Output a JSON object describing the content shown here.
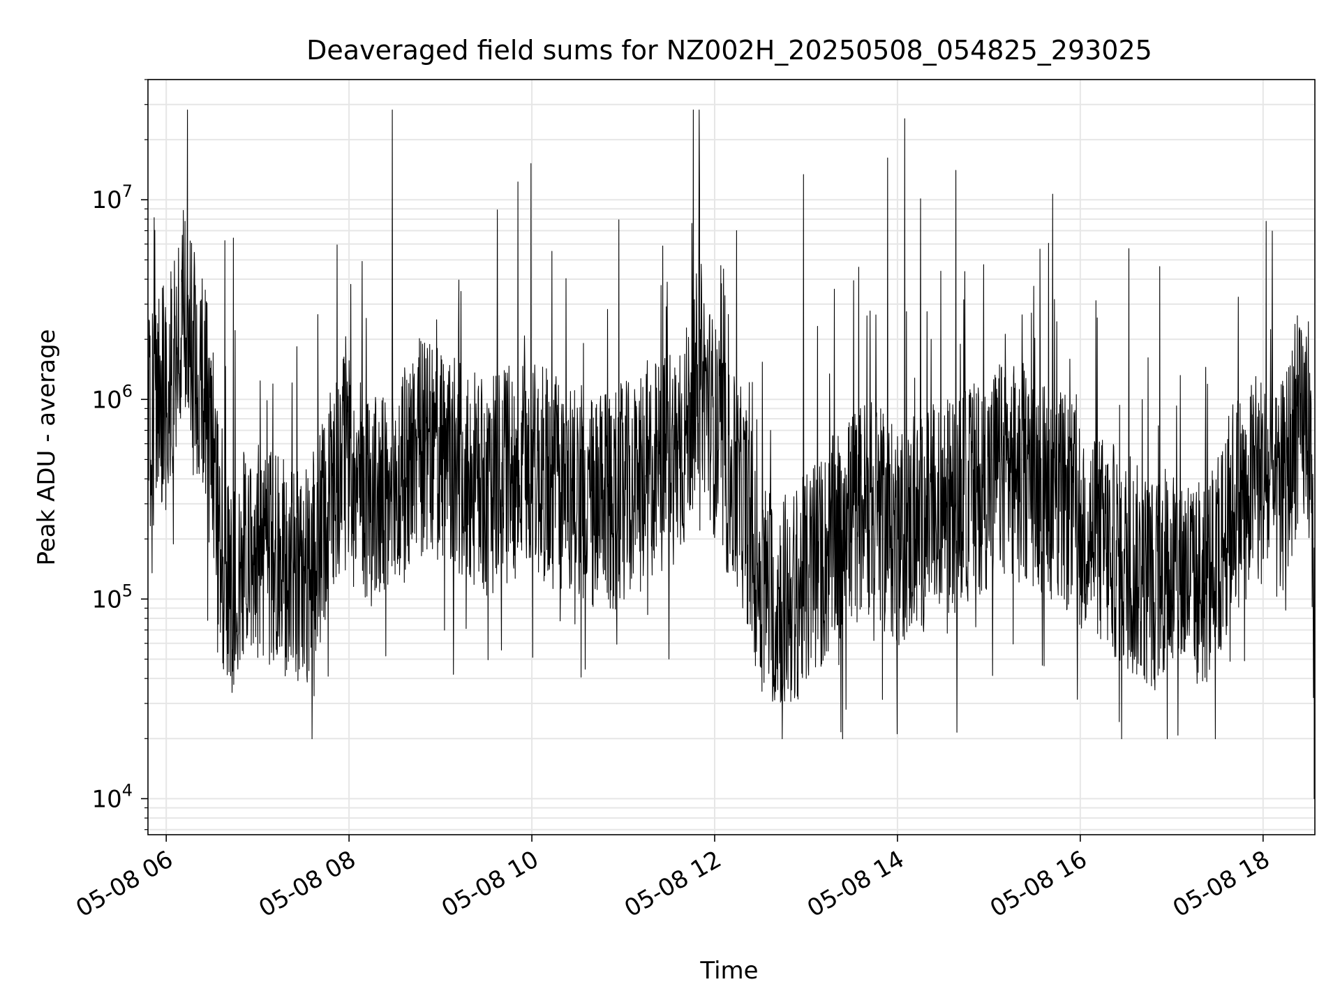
{
  "chart_data": {
    "type": "line",
    "title": "Deaveraged field sums for NZ002H_20250508_054825_293025",
    "xlabel": "Time",
    "ylabel": "Peak ADU - average",
    "yscale": "log",
    "ylim": [
      6600,
      40000000
    ],
    "xlim": [
      "05-08 05:48",
      "05-08 18:34"
    ],
    "grid": true,
    "line_color": "#000000",
    "grid_color": "#e6e6e6",
    "x_ticks": [
      {
        "label": "05-08 06",
        "hour": 6
      },
      {
        "label": "05-08 08",
        "hour": 8
      },
      {
        "label": "05-08 10",
        "hour": 10
      },
      {
        "label": "05-08 12",
        "hour": 12
      },
      {
        "label": "05-08 14",
        "hour": 14
      },
      {
        "label": "05-08 16",
        "hour": 16
      },
      {
        "label": "05-08 18",
        "hour": 18
      }
    ],
    "y_ticks": [
      {
        "base": "10",
        "exp": "4",
        "value": 10000
      },
      {
        "base": "10",
        "exp": "5",
        "value": 100000
      },
      {
        "base": "10",
        "exp": "6",
        "value": 1000000
      },
      {
        "base": "10",
        "exp": "7",
        "value": 10000000
      }
    ],
    "series": [
      {
        "x": [
          "05:48",
          "05:55",
          "06:00",
          "06:05",
          "06:10",
          "06:15",
          "06:20",
          "06:25",
          "06:30",
          "06:35",
          "06:40",
          "06:45",
          "06:50",
          "06:55",
          "07:00",
          "07:10",
          "07:20",
          "07:30",
          "07:40",
          "07:45",
          "07:50",
          "08:00",
          "08:10",
          "08:20",
          "08:30",
          "08:40",
          "08:45",
          "08:50",
          "09:00",
          "09:10",
          "09:20",
          "09:30",
          "09:40",
          "09:50",
          "10:00",
          "10:10",
          "10:20",
          "10:30",
          "10:40",
          "10:50",
          "11:00",
          "11:10",
          "11:20",
          "11:30",
          "11:40",
          "11:50",
          "12:00",
          "12:10",
          "12:20",
          "12:30",
          "12:40",
          "12:50",
          "13:00",
          "13:10",
          "13:20",
          "13:30",
          "13:40",
          "13:50",
          "14:00",
          "14:10",
          "14:20",
          "14:30",
          "14:40",
          "14:50",
          "15:00",
          "15:10",
          "15:20",
          "15:30",
          "15:40",
          "15:50",
          "16:00",
          "16:10",
          "16:20",
          "16:30",
          "16:40",
          "16:50",
          "17:00",
          "17:10",
          "17:20",
          "17:30",
          "17:40",
          "17:50",
          "18:00",
          "18:10",
          "18:20",
          "18:30",
          "18:34"
        ],
        "y": [
          700000,
          1000000,
          900000,
          1500000,
          2000000,
          2500000,
          1500000,
          1200000,
          800000,
          150000,
          120000,
          100000,
          150000,
          200000,
          180000,
          150000,
          140000,
          120000,
          180000,
          300000,
          400000,
          500000,
          350000,
          300000,
          300000,
          500000,
          600000,
          550000,
          500000,
          450000,
          400000,
          350000,
          400000,
          450000,
          450000,
          400000,
          350000,
          380000,
          300000,
          300000,
          350000,
          350000,
          450000,
          500000,
          600000,
          1500000,
          700000,
          400000,
          300000,
          120000,
          100000,
          100000,
          120000,
          150000,
          200000,
          250000,
          300000,
          250000,
          200000,
          220000,
          250000,
          300000,
          300000,
          350000,
          400000,
          450000,
          450000,
          400000,
          350000,
          300000,
          250000,
          200000,
          180000,
          150000,
          130000,
          120000,
          150000,
          130000,
          120000,
          140000,
          300000,
          350000,
          400000,
          300000,
          600000,
          800000,
          60000
        ]
      }
    ]
  }
}
